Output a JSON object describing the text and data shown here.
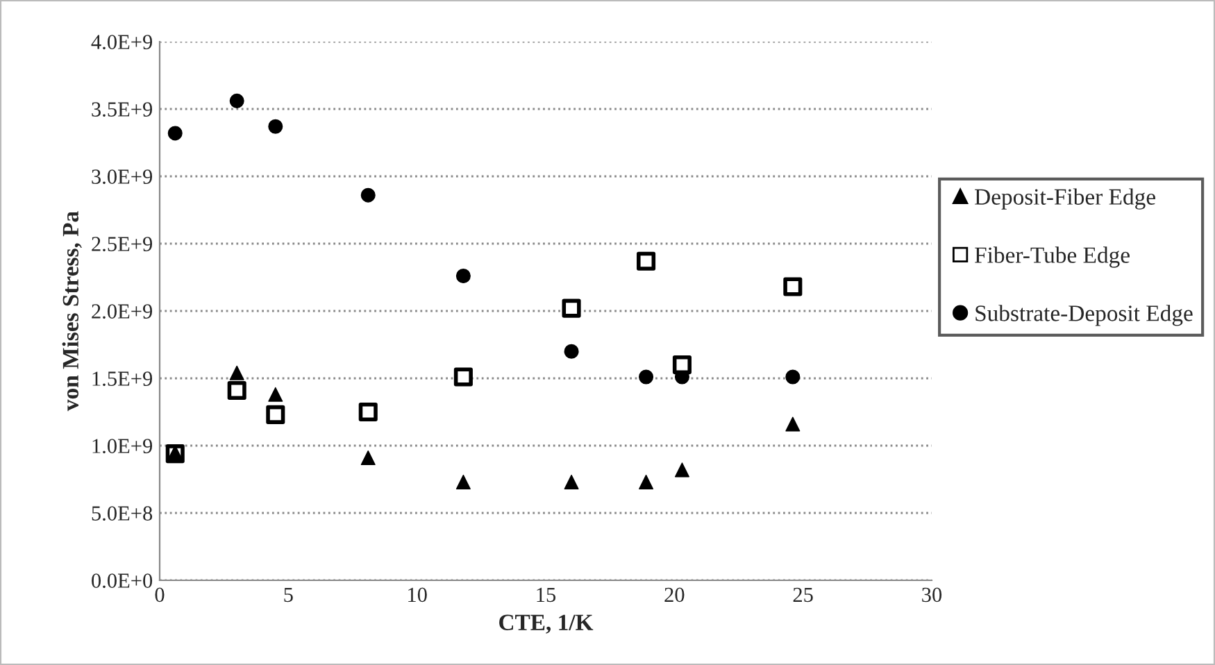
{
  "chart_data": {
    "type": "scatter",
    "xlabel": "CTE, 1/K",
    "ylabel": "von Mises Stress, Pa",
    "x": [
      0.6,
      3.0,
      4.5,
      8.1,
      11.8,
      16.0,
      18.9,
      20.3,
      24.6
    ],
    "series": [
      {
        "name": "Deposit-Fiber Edge",
        "color": "#000000",
        "marker": "triangle",
        "values": [
          950000000,
          1540000000,
          1380000000,
          910000000,
          730000000,
          730000000,
          730000000,
          820000000,
          1160000000
        ]
      },
      {
        "name": "Fiber-Tube Edge",
        "color": "#000000",
        "marker": "square",
        "values": [
          940000000,
          1410000000,
          1230000000,
          1250000000,
          1510000000,
          2020000000,
          2370000000,
          1600000000,
          2180000000
        ]
      },
      {
        "name": "Substrate-Deposit Edge",
        "color": "#000000",
        "marker": "circle",
        "values": [
          3320000000,
          3560000000,
          3370000000,
          2860000000,
          2260000000,
          1700000000,
          1510000000,
          1510000000,
          1510000000
        ]
      }
    ],
    "xlim": [
      0,
      30
    ],
    "xticks": [
      0,
      5,
      10,
      15,
      20,
      25,
      30
    ],
    "ylim": [
      0,
      4000000000
    ],
    "yticks": [
      {
        "value": 0,
        "label": "0.0E+0"
      },
      {
        "value": 500000000,
        "label": "5.0E+8"
      },
      {
        "value": 1000000000,
        "label": "1.0E+9"
      },
      {
        "value": 1500000000,
        "label": "1.5E+9"
      },
      {
        "value": 2000000000,
        "label": "2.0E+9"
      },
      {
        "value": 2500000000,
        "label": "2.5E+9"
      },
      {
        "value": 3000000000,
        "label": "3.0E+9"
      },
      {
        "value": 3500000000,
        "label": "3.5E+9"
      },
      {
        "value": 4000000000,
        "label": "4.0E+9"
      }
    ],
    "grid": "y",
    "legend": "right"
  }
}
